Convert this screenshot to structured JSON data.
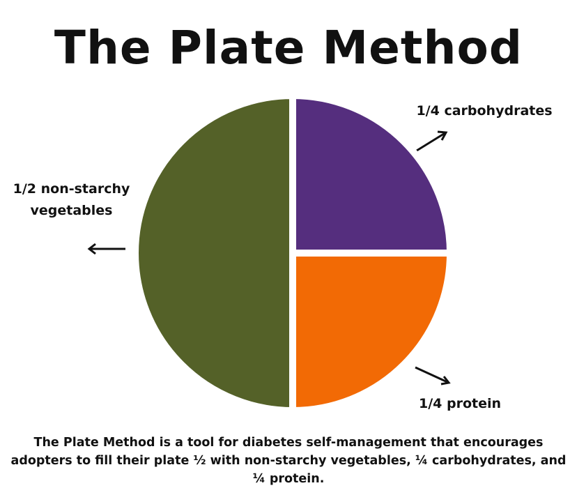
{
  "chart_data": {
    "type": "pie",
    "title": "The Plate Method",
    "categories": [
      "carbohydrates",
      "protein",
      "non-starchy vegetables"
    ],
    "values": [
      0.25,
      0.25,
      0.5
    ],
    "value_labels": [
      "1/4",
      "1/4",
      "1/2"
    ],
    "colors": [
      "#552e7e",
      "#f26a05",
      "#546128"
    ],
    "caption": "The Plate Method is a tool for diabetes self-management that encourages adopters to fill their plate ½ with non-starchy vegetables, ¼ carbohydrates, and ¼ protein."
  }
}
